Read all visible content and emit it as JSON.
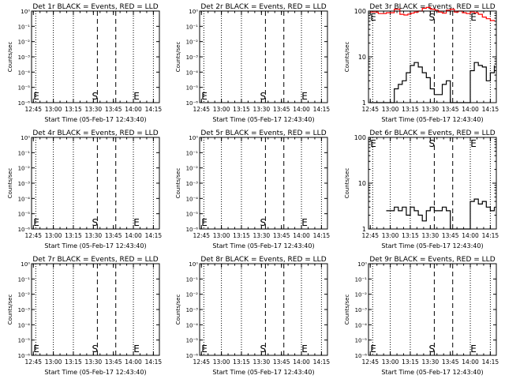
{
  "chart_data": [
    {
      "type": "line",
      "title": "Det 1r BLACK = Events, RED = LLD",
      "ylabel": "Counts/sec",
      "xlabel": "Start Time (05-Feb-17 12:43:40)",
      "x_ticks": [
        "12:45",
        "13:00",
        "13:15",
        "13:30",
        "13:45",
        "14:00",
        "14:15"
      ],
      "y_scale": "log",
      "y_tick_labels": [
        "10⁰",
        "10⁻¹",
        "10⁻²",
        "10⁻³",
        "10⁻⁴",
        "10⁻⁵",
        "10⁻⁶"
      ],
      "ylim": [
        1e-06,
        1
      ],
      "markers": [
        {
          "label": "S"
        },
        {
          "label": "E"
        }
      ],
      "series": []
    },
    {
      "type": "line",
      "title": "Det 2r BLACK = Events, RED = LLD",
      "ylabel": "Counts/sec",
      "xlabel": "Start Time (05-Feb-17 12:43:40)",
      "x_ticks": [
        "12:45",
        "13:00",
        "13:15",
        "13:30",
        "13:45",
        "14:00",
        "14:15"
      ],
      "y_scale": "log",
      "y_tick_labels": [
        "10⁰",
        "10⁻¹",
        "10⁻²",
        "10⁻³",
        "10⁻⁴",
        "10⁻⁵",
        "10⁻⁶"
      ],
      "ylim": [
        1e-06,
        1
      ],
      "markers": [
        {
          "label": "S"
        },
        {
          "label": "E"
        }
      ],
      "series": []
    },
    {
      "type": "line",
      "title": "Det 3r BLACK = Events, RED = LLD",
      "ylabel": "Counts/sec",
      "xlabel": "Start Time (05-Feb-17 12:43:40)",
      "x_ticks": [
        "12:45",
        "13:00",
        "13:15",
        "13:30",
        "13:45",
        "14:00",
        "14:15"
      ],
      "y_scale": "log",
      "y_tick_labels": [
        "1",
        "10",
        "100"
      ],
      "ylim": [
        1,
        100
      ],
      "markers": [
        {
          "label": "S"
        },
        {
          "label": "E"
        }
      ],
      "series": [
        {
          "color": "#ff0000",
          "x": [
            12.75,
            12.85,
            12.95,
            13.05,
            13.12,
            13.17,
            13.22,
            13.26,
            13.3,
            13.35,
            13.4,
            13.45,
            13.5,
            13.56,
            13.6,
            13.65,
            13.7,
            13.75,
            13.8,
            13.85,
            13.9,
            13.95,
            14.0,
            14.05,
            14.1,
            14.15,
            14.2,
            14.25,
            14.3
          ],
          "y": [
            95,
            88,
            92,
            110,
            85,
            82,
            86,
            90,
            95,
            100,
            115,
            120,
            110,
            105,
            95,
            90,
            105,
            110,
            95,
            100,
            92,
            88,
            95,
            92,
            85,
            74,
            68,
            62,
            60
          ]
        },
        {
          "color": "#000000",
          "x": [
            12.75,
            12.95,
            13.05,
            13.1,
            13.15,
            13.2,
            13.25,
            13.3,
            13.35,
            13.4,
            13.45,
            13.5,
            13.55,
            13.6,
            13.65,
            13.7,
            13.75,
            13.8,
            13.85,
            13.9,
            13.95,
            14.0,
            14.05,
            14.1,
            14.15,
            14.2,
            14.25,
            14.3
          ],
          "y": [
            1,
            1,
            2.0,
            2.5,
            3.0,
            4.5,
            6.5,
            7.5,
            6.0,
            4.5,
            3.5,
            2.0,
            1.5,
            1.5,
            2.5,
            3.0,
            1,
            1,
            1,
            1,
            1,
            5.0,
            7.5,
            6.5,
            6.0,
            3.0,
            4.5,
            6.5
          ]
        }
      ]
    },
    {
      "type": "line",
      "title": "Det 4r BLACK = Events, RED = LLD",
      "ylabel": "Counts/sec",
      "xlabel": "Start Time (05-Feb-17 12:43:40)",
      "x_ticks": [
        "12:45",
        "13:00",
        "13:15",
        "13:30",
        "13:45",
        "14:00",
        "14:15"
      ],
      "y_scale": "log",
      "y_tick_labels": [
        "10⁰",
        "10⁻¹",
        "10⁻²",
        "10⁻³",
        "10⁻⁴",
        "10⁻⁵",
        "10⁻⁶"
      ],
      "ylim": [
        1e-06,
        1
      ],
      "markers": [
        {
          "label": "S"
        },
        {
          "label": "E"
        }
      ],
      "series": []
    },
    {
      "type": "line",
      "title": "Det 5r BLACK = Events, RED = LLD",
      "ylabel": "Counts/sec",
      "xlabel": "Start Time (05-Feb-17 12:43:40)",
      "x_ticks": [
        "12:45",
        "13:00",
        "13:15",
        "13:30",
        "13:45",
        "14:00",
        "14:15"
      ],
      "y_scale": "log",
      "y_tick_labels": [
        "10⁰",
        "10⁻¹",
        "10⁻²",
        "10⁻³",
        "10⁻⁴",
        "10⁻⁵",
        "10⁻⁶"
      ],
      "ylim": [
        1e-06,
        1
      ],
      "markers": [
        {
          "label": "S"
        },
        {
          "label": "E"
        }
      ],
      "series": []
    },
    {
      "type": "line",
      "title": "Det 6r BLACK = Events, RED = LLD",
      "ylabel": "Counts/sec",
      "xlabel": "Start Time (05-Feb-17 12:43:40)",
      "x_ticks": [
        "12:45",
        "13:00",
        "13:15",
        "13:30",
        "13:45",
        "14:00",
        "14:15"
      ],
      "y_scale": "log",
      "y_tick_labels": [
        "1",
        "10",
        "100"
      ],
      "ylim": [
        1,
        100
      ],
      "markers": [
        {
          "label": "S"
        },
        {
          "label": "E"
        }
      ],
      "series": [
        {
          "color": "#000000",
          "x": [
            12.95,
            13.0,
            13.05,
            13.1,
            13.15,
            13.2,
            13.25,
            13.3,
            13.35,
            13.4,
            13.45,
            13.5,
            13.55,
            13.6,
            13.65,
            13.7,
            13.75,
            13.8,
            13.85,
            13.9,
            13.95,
            14.0,
            14.05,
            14.1,
            14.15,
            14.2,
            14.25,
            14.3
          ],
          "y": [
            2.5,
            2.5,
            3.0,
            2.5,
            3.0,
            2.0,
            3.0,
            2.5,
            2.0,
            1.5,
            2.5,
            3.0,
            2.5,
            2.5,
            3.0,
            2.5,
            1,
            1,
            1,
            1,
            1,
            4.0,
            4.5,
            3.5,
            4.0,
            3.0,
            2.5,
            3.0
          ]
        }
      ]
    },
    {
      "type": "line",
      "title": "Det 7r BLACK = Events, RED = LLD",
      "ylabel": "Counts/sec",
      "xlabel": "Start Time (05-Feb-17 12:43:40)",
      "x_ticks": [
        "12:45",
        "13:00",
        "13:15",
        "13:30",
        "13:45",
        "14:00",
        "14:15"
      ],
      "y_scale": "log",
      "y_tick_labels": [
        "10⁰",
        "10⁻¹",
        "10⁻²",
        "10⁻³",
        "10⁻⁴",
        "10⁻⁵",
        "10⁻⁶"
      ],
      "ylim": [
        1e-06,
        1
      ],
      "markers": [
        {
          "label": "S"
        },
        {
          "label": "E"
        }
      ],
      "series": []
    },
    {
      "type": "line",
      "title": "Det 8r BLACK = Events, RED = LLD",
      "ylabel": "Counts/sec",
      "xlabel": "Start Time (05-Feb-17 12:43:40)",
      "x_ticks": [
        "12:45",
        "13:00",
        "13:15",
        "13:30",
        "13:45",
        "14:00",
        "14:15"
      ],
      "y_scale": "log",
      "y_tick_labels": [
        "10⁰",
        "10⁻¹",
        "10⁻²",
        "10⁻³",
        "10⁻⁴",
        "10⁻⁵",
        "10⁻⁶"
      ],
      "ylim": [
        1e-06,
        1
      ],
      "markers": [
        {
          "label": "S"
        },
        {
          "label": "E"
        }
      ],
      "series": []
    },
    {
      "type": "line",
      "title": "Det 9r BLACK = Events, RED = LLD",
      "ylabel": "Counts/sec",
      "xlabel": "Start Time (05-Feb-17 12:43:40)",
      "x_ticks": [
        "12:45",
        "13:00",
        "13:15",
        "13:30",
        "13:45",
        "14:00",
        "14:15"
      ],
      "y_scale": "log",
      "y_tick_labels": [
        "10⁰",
        "10⁻¹",
        "10⁻²",
        "10⁻³",
        "10⁻⁴",
        "10⁻⁵",
        "10⁻⁶"
      ],
      "ylim": [
        1e-06,
        1
      ],
      "markers": [
        {
          "label": "S"
        },
        {
          "label": "E"
        }
      ],
      "series": []
    }
  ]
}
